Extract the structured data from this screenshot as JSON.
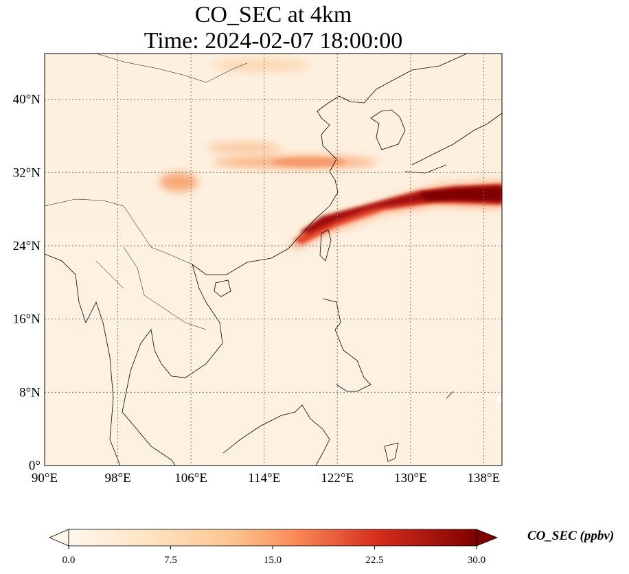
{
  "chart_data": {
    "type": "heatmap",
    "title": [
      "CO_SEC at 4km",
      "Time: 2024-02-07 18:00:00"
    ],
    "variable": "CO_SEC",
    "level": "4km",
    "time": "2024-02-07 18:00:00",
    "x_axis": {
      "range": [
        90,
        140
      ],
      "ticks": [
        90,
        98,
        106,
        114,
        122,
        130,
        138
      ],
      "tick_labels": [
        "90°E",
        "98°E",
        "106°E",
        "114°E",
        "122°E",
        "130°E",
        "138°E"
      ]
    },
    "y_axis": {
      "range": [
        0,
        45
      ],
      "ticks": [
        0,
        8,
        16,
        24,
        32,
        40
      ],
      "tick_labels": [
        "0°",
        "8°N",
        "16°N",
        "24°N",
        "32°N",
        "40°N"
      ]
    },
    "grid": "dotted",
    "colormap": "OrRd",
    "colorbar": {
      "label": "CO_SEC (ppbv)",
      "range": [
        0,
        30
      ],
      "ticks": [
        0,
        7.5,
        15,
        22.5,
        30
      ],
      "tick_labels": [
        "0.0",
        "7.5",
        "15.0",
        "22.5",
        "30.0"
      ],
      "extend": "both"
    },
    "plumes": [
      {
        "name": "main-plume-east-china-sea",
        "from_lon": 116.5,
        "from_lat": 24.5,
        "to_lon": 140,
        "to_lat": 29.5,
        "peak_value": 30
      },
      {
        "name": "plume-32n-band",
        "from_lon": 110,
        "from_lat": 32.5,
        "to_lon": 124,
        "to_lat": 33,
        "peak_value": 14
      },
      {
        "name": "plume-sichuan",
        "from_lon": 103,
        "from_lat": 30,
        "to_lon": 106,
        "to_lat": 30.5,
        "peak_value": 10
      },
      {
        "name": "plume-north-38n",
        "from_lon": 108,
        "from_lat": 34.5,
        "to_lon": 114,
        "to_lat": 35,
        "peak_value": 8
      }
    ],
    "background_value": 2
  }
}
